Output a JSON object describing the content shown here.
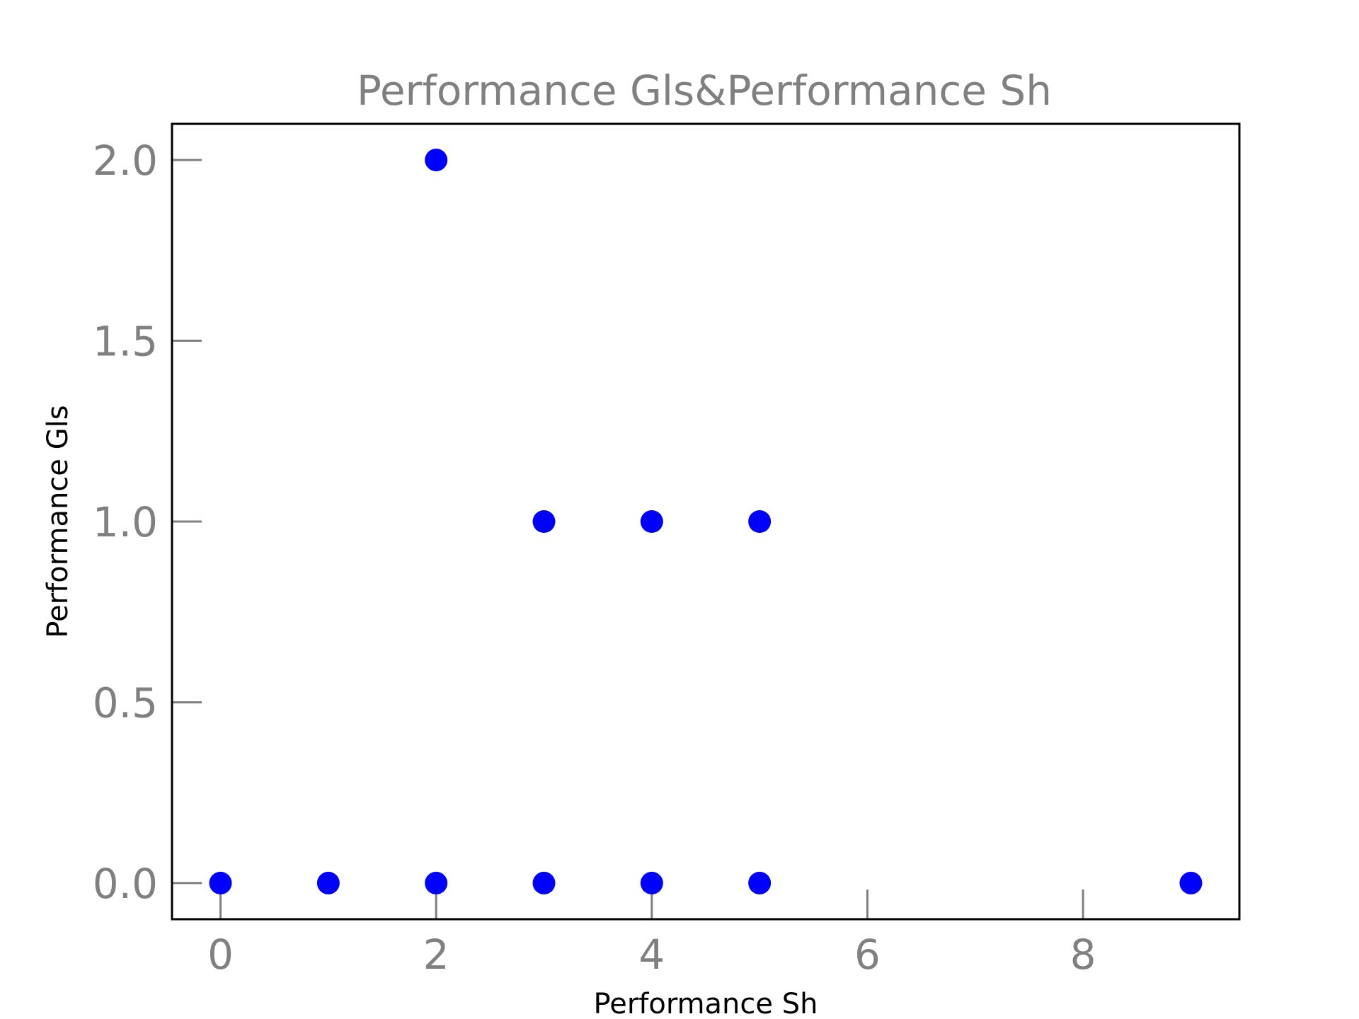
{
  "colors": {
    "point": "#0000ff",
    "tick": "#808080",
    "tick_label": "#808080",
    "title": "#808080",
    "frame": "#000000"
  },
  "chart_data": {
    "type": "scatter",
    "title": "Performance Gls&Performance Sh",
    "xlabel": "Performance Sh",
    "ylabel": "Performance Gls",
    "xlim": [
      -0.45,
      9.45
    ],
    "ylim": [
      -0.1,
      2.1
    ],
    "xticks": [
      0,
      2,
      4,
      6,
      8
    ],
    "yticks": [
      0.0,
      0.5,
      1.0,
      1.5,
      2.0
    ],
    "xtick_labels": [
      "0",
      "2",
      "4",
      "6",
      "8"
    ],
    "ytick_labels": [
      "0.0",
      "0.5",
      "1.0",
      "1.5",
      "2.0"
    ],
    "grid": false,
    "points": [
      {
        "x": 0,
        "y": 0
      },
      {
        "x": 1,
        "y": 0
      },
      {
        "x": 2,
        "y": 0
      },
      {
        "x": 2,
        "y": 2
      },
      {
        "x": 3,
        "y": 0
      },
      {
        "x": 3,
        "y": 1
      },
      {
        "x": 4,
        "y": 0
      },
      {
        "x": 4,
        "y": 1
      },
      {
        "x": 5,
        "y": 0
      },
      {
        "x": 5,
        "y": 1
      },
      {
        "x": 9,
        "y": 0
      }
    ]
  }
}
